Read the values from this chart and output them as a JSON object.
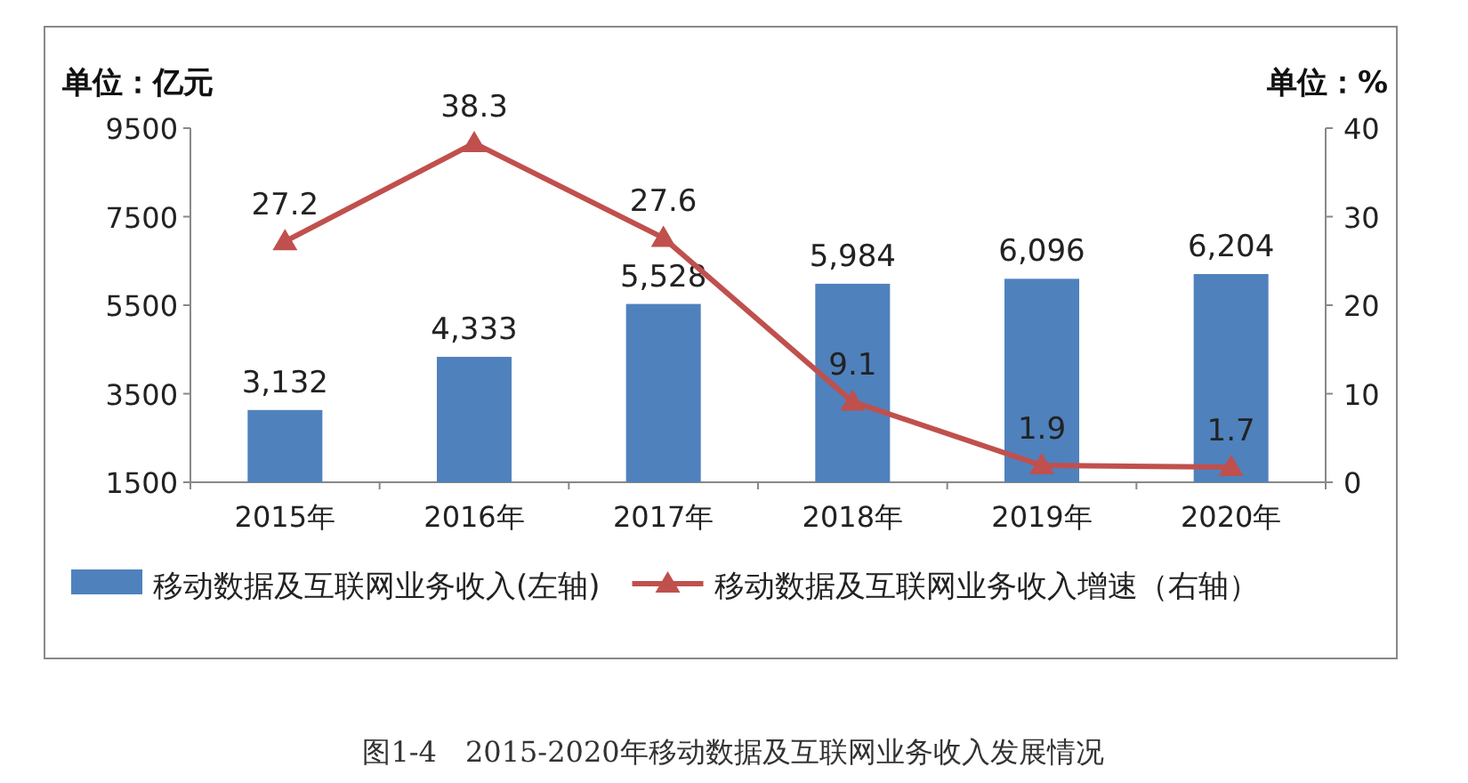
{
  "chart_data": {
    "type": "bar",
    "title": "图1-4　2015-2020年移动数据及互联网业务收入发展情况",
    "ylabel": "单位：亿元",
    "y2label": "单位：%",
    "categories": [
      "2015年",
      "2016年",
      "2017年",
      "2018年",
      "2019年",
      "2020年"
    ],
    "series": [
      {
        "name": "移动数据及互联网业务收入(左轴)",
        "color": "#4f81bd",
        "values": [
          3132,
          4333,
          5528,
          5984,
          6096,
          6204
        ],
        "value_labels": [
          "3,132",
          "4,333",
          "5,528",
          "5,984",
          "6,096",
          "6,204"
        ]
      },
      {
        "name": "移动数据及互联网业务收入增速（右轴）",
        "type": "line",
        "axis": "y2",
        "color": "#c0504d",
        "marker": "triangle",
        "values": [
          27.2,
          38.3,
          27.6,
          9.1,
          1.9,
          1.7
        ],
        "value_labels": [
          "27.2",
          "38.3",
          "27.6",
          "9.1",
          "1.9",
          "1.7"
        ]
      }
    ],
    "ylim": [
      1500,
      9500
    ],
    "yticks": [
      1500,
      3500,
      5500,
      7500,
      9500
    ],
    "y2lim": [
      0,
      40
    ],
    "y2ticks": [
      0,
      10,
      20,
      30,
      40
    ],
    "legend": "bottom"
  }
}
